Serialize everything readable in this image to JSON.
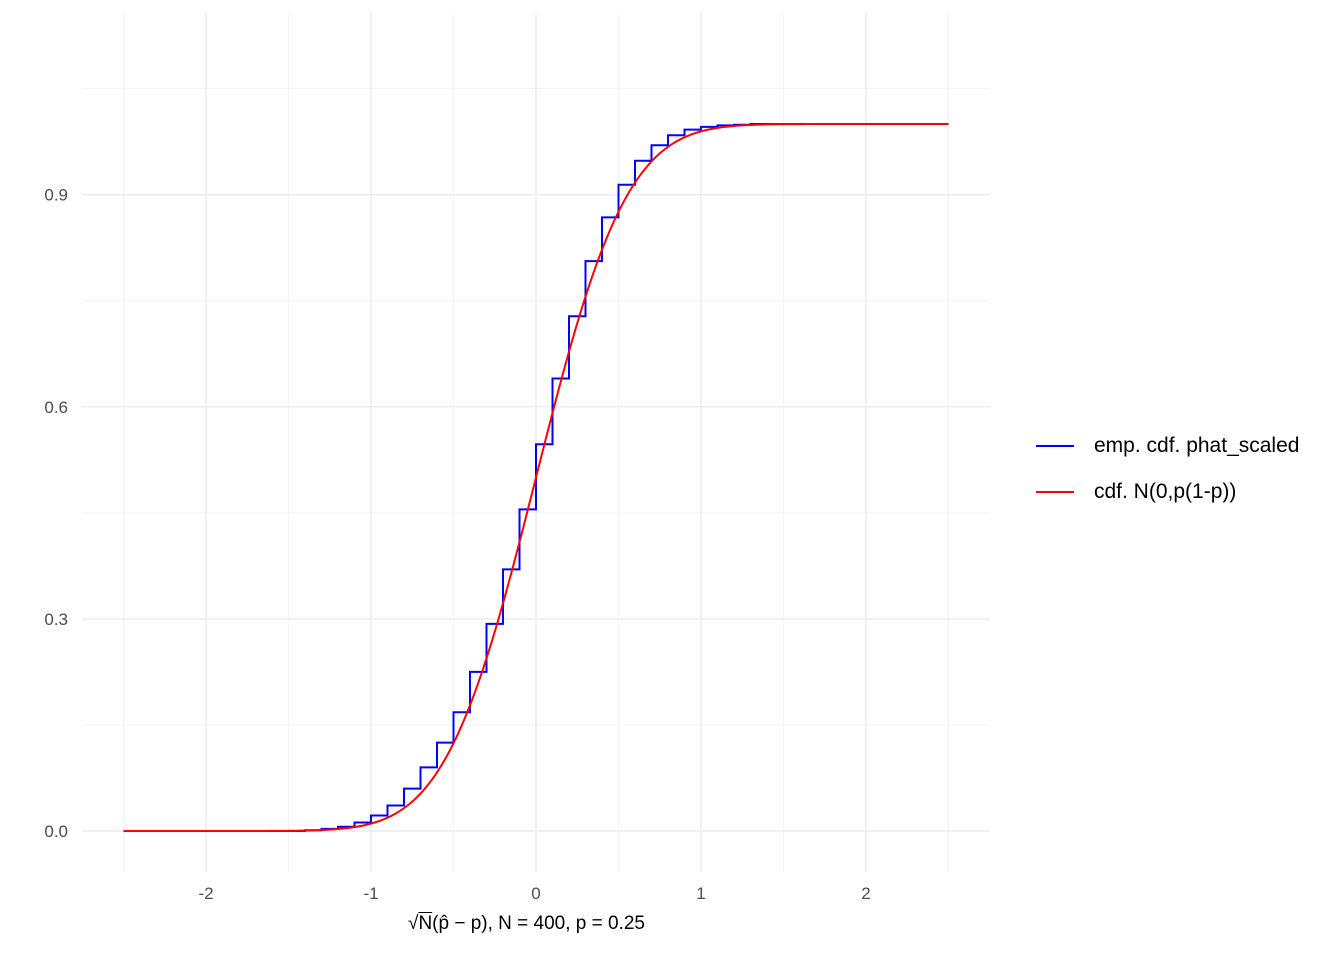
{
  "chart_data": {
    "type": "line",
    "title": "",
    "xlabel_parts": {
      "root": "√",
      "N": "N",
      "expr": "(p̂ − p), N = 400, p = 0.25"
    },
    "ylabel": "",
    "xlim": [
      -2.5,
      2.5
    ],
    "ylim": [
      0,
      1
    ],
    "x_ticks": [
      -2,
      -1,
      0,
      1,
      2
    ],
    "x_tick_labels": [
      "-2",
      "-1",
      "0",
      "1",
      "2"
    ],
    "y_ticks": [
      0.0,
      0.3,
      0.6,
      0.9
    ],
    "y_tick_labels": [
      "0.0",
      "0.3",
      "0.6",
      "0.9"
    ],
    "grid": true,
    "legend_position": "right",
    "series": [
      {
        "name": "emp. cdf. phat_scaled",
        "color": "#0000ff",
        "kind": "step",
        "x": [
          -2.5,
          -1.4,
          -1.3,
          -1.2,
          -1.1,
          -1.0,
          -0.9,
          -0.8,
          -0.7,
          -0.6,
          -0.5,
          -0.4,
          -0.3,
          -0.2,
          -0.1,
          0.0,
          0.1,
          0.2,
          0.3,
          0.4,
          0.5,
          0.6,
          0.7,
          0.8,
          0.9,
          1.0,
          1.1,
          1.2,
          1.3,
          1.4,
          2.5
        ],
        "y": [
          0.0,
          0.001,
          0.003,
          0.006,
          0.012,
          0.022,
          0.036,
          0.06,
          0.09,
          0.125,
          0.168,
          0.225,
          0.293,
          0.37,
          0.455,
          0.547,
          0.64,
          0.728,
          0.806,
          0.868,
          0.914,
          0.948,
          0.97,
          0.984,
          0.992,
          0.996,
          0.998,
          0.999,
          1.0,
          1.0,
          1.0
        ]
      },
      {
        "name": "cdf. N(0,p(1-p))",
        "color": "#ff0000",
        "kind": "normal_cdf",
        "sd": 0.4330127
      }
    ]
  }
}
